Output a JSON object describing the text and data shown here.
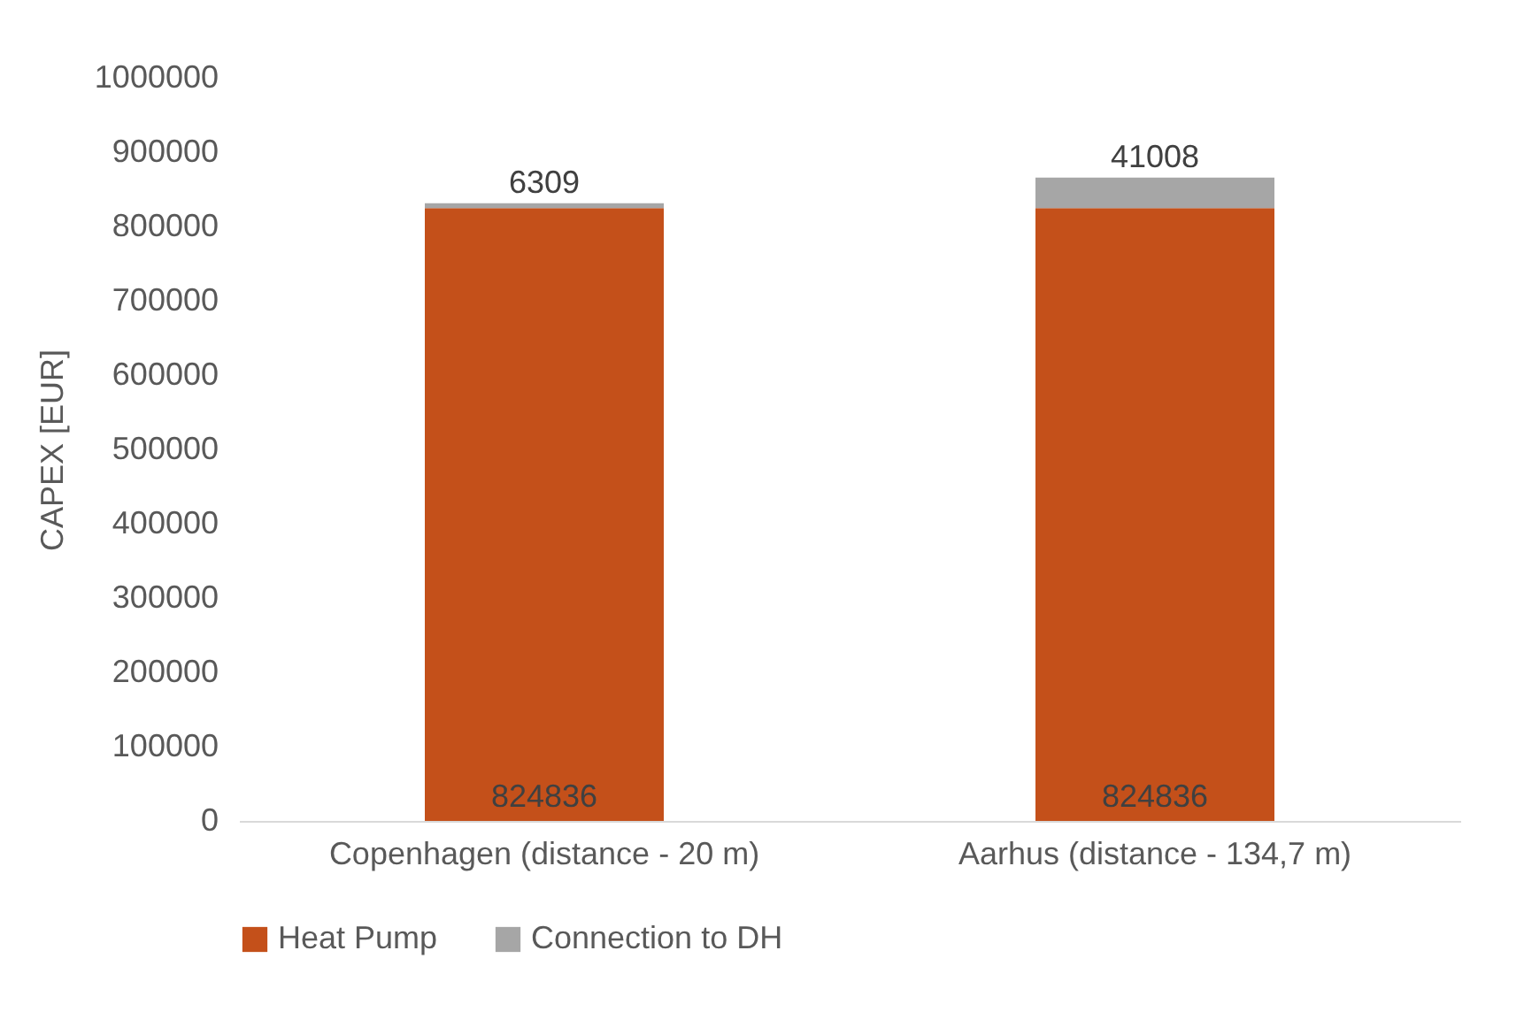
{
  "chart_data": {
    "type": "bar",
    "stacked": true,
    "categories": [
      "Copenhagen (distance - 20 m)",
      "Aarhus (distance - 134,7 m)"
    ],
    "series": [
      {
        "name": "Heat Pump",
        "color": "#c4501a",
        "values": [
          824836,
          824836
        ]
      },
      {
        "name": "Connection to DH",
        "color": "#a6a6a6",
        "values": [
          6309,
          41008
        ]
      }
    ],
    "ylabel": "CAPEX [EUR]",
    "ylim": [
      0,
      1000000
    ],
    "yticks": [
      0,
      100000,
      200000,
      300000,
      400000,
      500000,
      600000,
      700000,
      800000,
      900000,
      1000000
    ],
    "data_labels": true,
    "grid": false,
    "legend": "bottom"
  }
}
